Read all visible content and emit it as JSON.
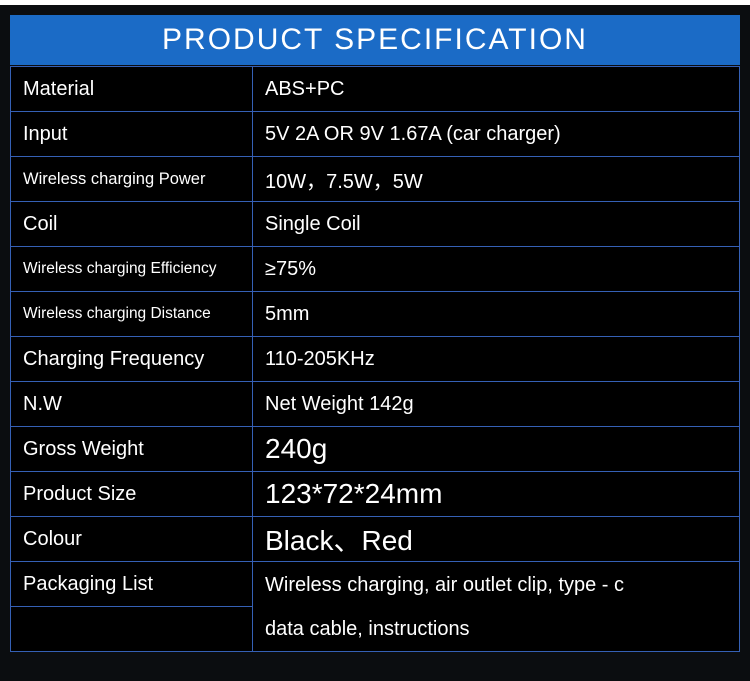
{
  "title": "PRODUCT SPECIFICATION",
  "rows": [
    {
      "label": "Material",
      "value": "ABS+PC"
    },
    {
      "label": "Input",
      "value": "5V 2A OR 9V 1.67A (car charger)"
    },
    {
      "label": "Wireless charging Power",
      "value": "10W，7.5W，5W"
    },
    {
      "label": "Coil",
      "value": "Single Coil"
    },
    {
      "label": "Wireless charging Efficiency",
      "value": "≥75%"
    },
    {
      "label": "Wireless charging Distance",
      "value": "5mm"
    },
    {
      "label": "Charging Frequency",
      "value": "110-205KHz"
    },
    {
      "label": "N.W",
      "value": "Net Weight 142g"
    },
    {
      "label": "Gross Weight",
      "value": "240g"
    },
    {
      "label": "Product Size",
      "value": "123*72*24mm"
    },
    {
      "label": "Colour",
      "value": "Black、Red"
    },
    {
      "label": "Packaging List",
      "value": "Wireless charging, air outlet clip, type - c",
      "value2": "data cable, instructions"
    }
  ]
}
